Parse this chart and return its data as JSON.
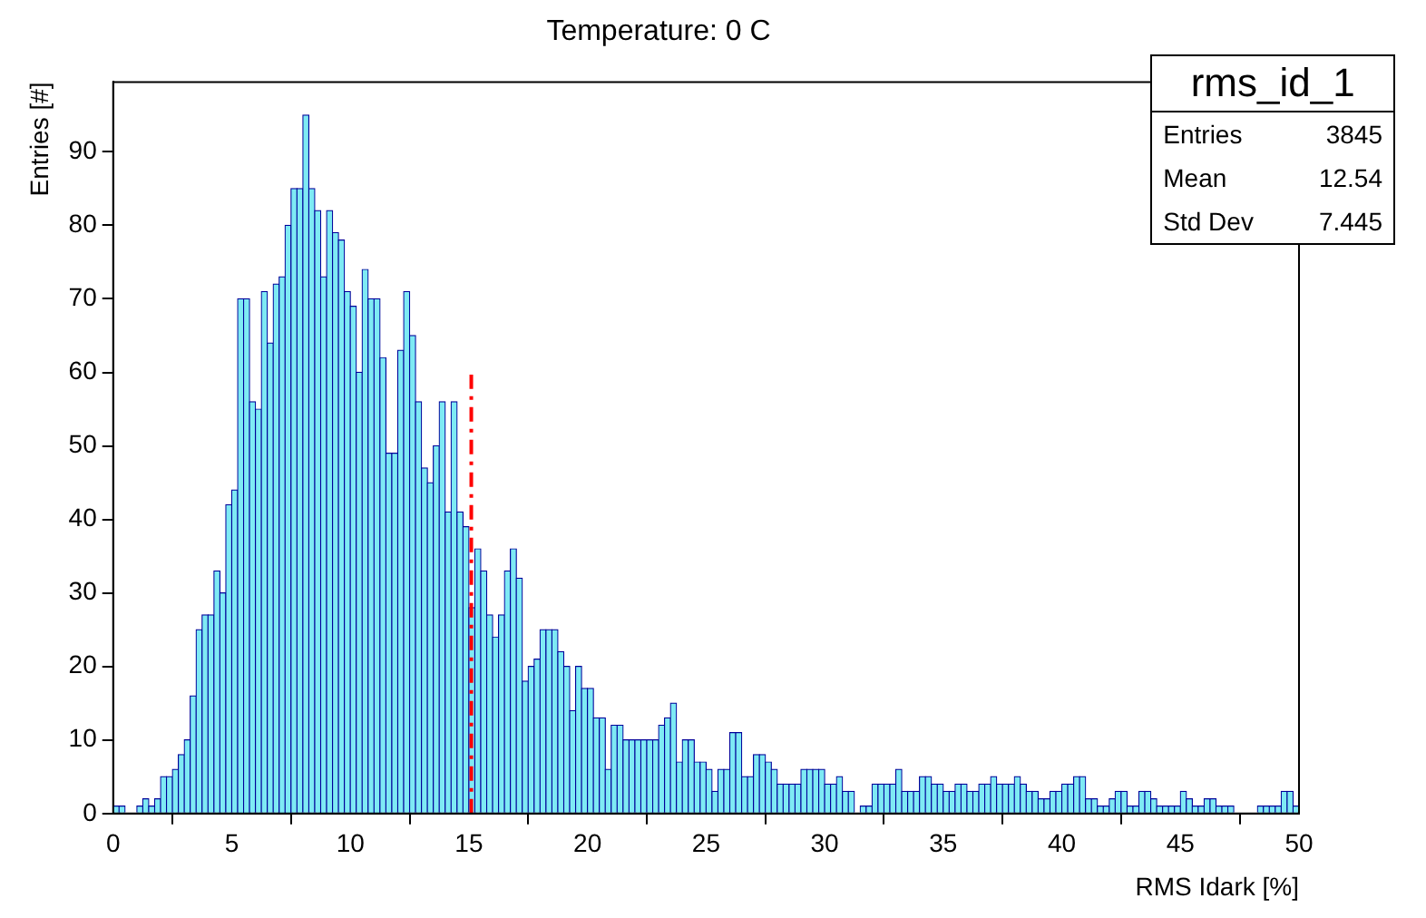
{
  "chart_data": {
    "type": "histogram",
    "title": "Temperature: 0 C",
    "xlabel": "RMS Idark [%]",
    "ylabel": "Entries [#]",
    "color": "#7eeaf4",
    "bins": [
      0,
      0.25,
      0.5,
      0.75,
      1,
      1.25,
      1.5,
      1.75,
      2,
      2.25,
      2.5,
      2.75,
      3,
      3.25,
      3.5,
      3.75,
      4,
      4.25,
      4.5,
      4.75,
      5,
      5.25,
      5.5,
      5.75,
      6,
      6.25,
      6.5,
      6.75,
      7,
      7.25,
      7.5,
      7.75,
      8,
      8.25,
      8.5,
      8.75,
      9,
      9.25,
      9.5,
      9.75,
      10,
      10.25,
      10.5,
      10.75,
      11,
      11.25,
      11.5,
      11.75,
      12,
      12.25,
      12.5,
      12.75,
      13,
      13.25,
      13.5,
      13.75,
      14,
      14.25,
      14.5,
      14.75,
      15,
      15.25,
      15.5,
      15.75,
      16,
      16.25,
      16.5,
      16.75,
      17,
      17.25,
      17.5,
      17.75,
      18,
      18.25,
      18.5,
      18.75,
      19,
      19.25,
      19.5,
      19.75,
      20,
      20.25,
      20.5,
      20.75,
      21,
      21.25,
      21.5,
      21.75,
      22,
      22.25,
      22.5,
      22.75,
      23,
      23.25,
      23.5,
      23.75,
      24,
      24.25,
      24.5,
      24.75,
      25,
      25.25,
      25.5,
      25.75,
      26,
      26.25,
      26.5,
      26.75,
      27,
      27.25,
      27.5,
      27.75,
      28,
      28.25,
      28.5,
      28.75,
      29,
      29.25,
      29.5,
      29.75,
      30,
      30.25,
      30.5,
      30.75,
      31,
      31.25,
      31.5,
      31.75,
      32,
      32.25,
      32.5,
      32.75,
      33,
      33.25,
      33.5,
      33.75,
      34,
      34.25,
      34.5,
      34.75,
      35,
      35.25,
      35.5,
      35.75,
      36,
      36.25,
      36.5,
      36.75,
      37,
      37.25,
      37.5,
      37.75,
      38,
      38.25,
      38.5,
      38.75,
      39,
      39.25,
      39.5,
      39.75,
      40,
      40.25,
      40.5,
      40.75,
      41,
      41.25,
      41.5,
      41.75,
      42,
      42.25,
      42.5,
      42.75,
      43,
      43.25,
      43.5,
      43.75,
      44,
      44.25,
      44.5,
      44.75,
      45,
      45.25,
      45.5,
      45.75,
      46,
      46.25,
      46.5,
      46.75,
      47,
      47.25,
      47.5,
      47.75,
      48,
      48.25,
      48.5,
      48.75,
      49,
      49.25,
      49.5,
      49.75,
      50
    ],
    "values": [
      1,
      1,
      0,
      0,
      1,
      2,
      1,
      2,
      5,
      5,
      6,
      8,
      10,
      16,
      25,
      27,
      27,
      33,
      30,
      42,
      44,
      70,
      70,
      56,
      55,
      71,
      64,
      72,
      73,
      80,
      85,
      85,
      95,
      85,
      82,
      73,
      82,
      79,
      78,
      71,
      69,
      60,
      74,
      70,
      70,
      62,
      49,
      49,
      63,
      71,
      65,
      56,
      47,
      45,
      50,
      56,
      41,
      56,
      41,
      39,
      28,
      36,
      33,
      27,
      24,
      27,
      33,
      36,
      32,
      18,
      20,
      21,
      25,
      25,
      25,
      22,
      20,
      14,
      20,
      17,
      17,
      13,
      13,
      6,
      12,
      12,
      10,
      10,
      10,
      10,
      10,
      10,
      12,
      13,
      15,
      7,
      10,
      10,
      7,
      7,
      6,
      3,
      6,
      6,
      11,
      11,
      5,
      5,
      8,
      8,
      7,
      6,
      4,
      4,
      4,
      4,
      6,
      6,
      6,
      6,
      4,
      4,
      5,
      3,
      3,
      0,
      1,
      1,
      4,
      4,
      4,
      4,
      6,
      3,
      3,
      3,
      5,
      5,
      4,
      4,
      3,
      3,
      4,
      4,
      3,
      3,
      4,
      4,
      5,
      4,
      4,
      4,
      5,
      4,
      3,
      3,
      2,
      2,
      3,
      3,
      4,
      4,
      5,
      5,
      2,
      2,
      1,
      1,
      2,
      3,
      3,
      1,
      1,
      3,
      3,
      2,
      1,
      1,
      1,
      1,
      3,
      2,
      1,
      1,
      2,
      2,
      1,
      1,
      1,
      0,
      0,
      0,
      0,
      1,
      1,
      1,
      1,
      3,
      3,
      1
    ],
    "xlim": [
      0,
      50
    ],
    "xticks": [
      0,
      5,
      10,
      15,
      20,
      25,
      30,
      35,
      40,
      45,
      50
    ],
    "ylim": [
      0,
      99.5
    ],
    "yticks": [
      0,
      10,
      20,
      30,
      40,
      50,
      60,
      70,
      80,
      90
    ],
    "grid": false,
    "legend": false,
    "ref_lines": [
      {
        "axis": "x",
        "value": 15.1,
        "color": "#ff0000",
        "line_style": "dashed"
      }
    ],
    "annotations": [
      "rms_id_1",
      "Entries",
      "3845",
      "Mean",
      "12.54",
      "Std Dev",
      "7.445"
    ]
  }
}
